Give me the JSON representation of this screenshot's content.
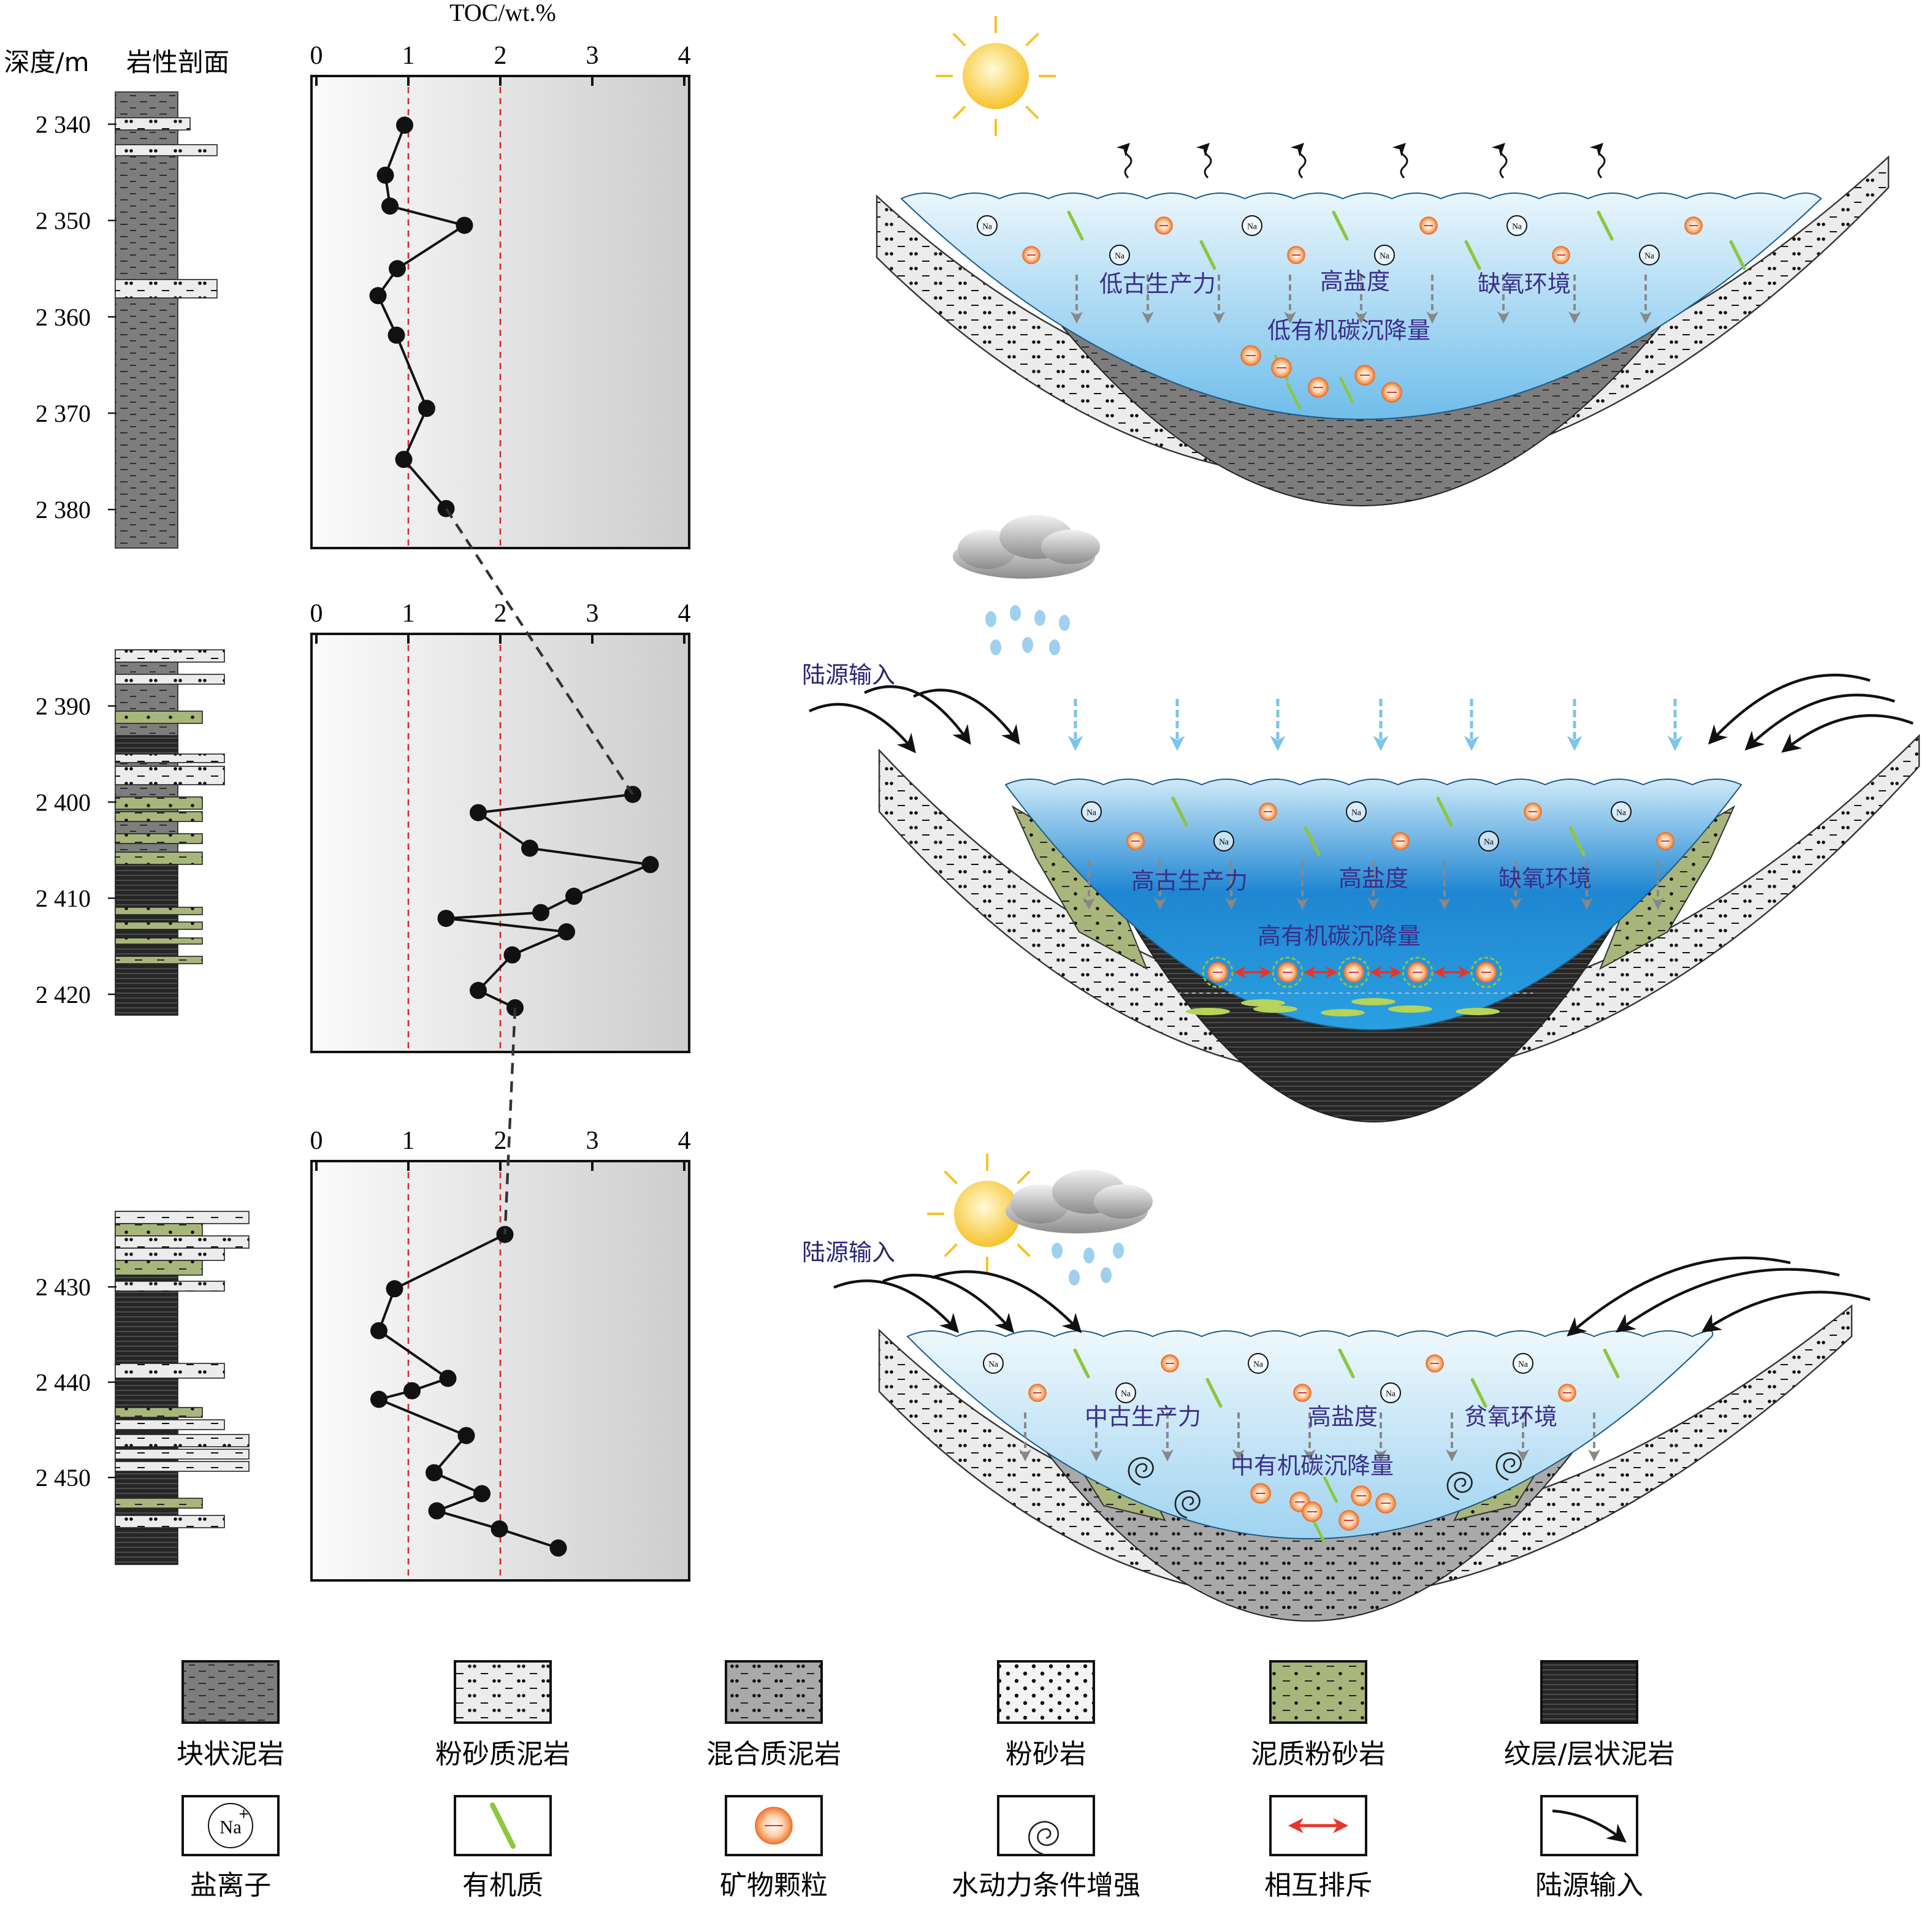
{
  "labels": {
    "depth": "深度/m",
    "lithology": "岩性剖面",
    "ion_symbol": "Na",
    "ion_charge": "+"
  },
  "chart_data": [
    {
      "type": "line",
      "x_label": "TOC/wt.%",
      "xlim": [
        0,
        4
      ],
      "xticks": [
        0,
        1,
        2,
        3,
        4
      ],
      "ref_lines": [
        1,
        2
      ],
      "ylim": [
        2335,
        2384
      ],
      "yticks": [
        {
          "value": 2340,
          "label": "2 340"
        },
        {
          "value": 2350,
          "label": "2 350"
        },
        {
          "value": 2360,
          "label": "2 360"
        },
        {
          "value": 2370,
          "label": "2 370"
        },
        {
          "value": 2380,
          "label": "2 380"
        }
      ],
      "x": [
        0.96,
        0.75,
        0.8,
        1.61,
        0.88,
        0.67,
        0.87,
        1.2,
        0.95,
        1.41
      ],
      "y": [
        2340.1,
        2345.3,
        2348.5,
        2350.5,
        2355.0,
        2357.8,
        2361.9,
        2369.5,
        2374.8,
        2379.9
      ]
    },
    {
      "type": "line",
      "xlim": [
        0,
        4
      ],
      "xticks": [
        0,
        1,
        2,
        3,
        4
      ],
      "ref_lines": [
        1,
        2
      ],
      "ylim": [
        2382.5,
        2426
      ],
      "yticks": [
        {
          "value": 2390,
          "label": "2 390"
        },
        {
          "value": 2400,
          "label": "2 400"
        },
        {
          "value": 2410,
          "label": "2 410"
        },
        {
          "value": 2420,
          "label": "2 420"
        }
      ],
      "x": [
        3.44,
        1.76,
        2.32,
        3.63,
        2.8,
        2.44,
        1.41,
        2.72,
        2.13,
        1.76,
        2.16
      ],
      "y": [
        2399.2,
        2401.1,
        2404.8,
        2406.5,
        2409.8,
        2411.5,
        2412.1,
        2413.5,
        2415.9,
        2419.6,
        2421.4
      ]
    },
    {
      "type": "line",
      "xlim": [
        0,
        4
      ],
      "xticks": [
        0,
        1,
        2,
        3,
        4
      ],
      "ref_lines": [
        1,
        2
      ],
      "ylim": [
        2416.8,
        2460.8
      ],
      "yticks": [
        {
          "value": 2430,
          "label": "2 430"
        },
        {
          "value": 2440,
          "label": "2 440"
        },
        {
          "value": 2450,
          "label": "2 450"
        }
      ],
      "x": [
        2.05,
        0.85,
        0.68,
        1.43,
        1.04,
        0.68,
        1.63,
        1.28,
        1.8,
        1.31,
        1.99,
        2.63
      ],
      "y": [
        2424.5,
        2430.2,
        2434.6,
        2439.6,
        2440.9,
        2441.8,
        2445.6,
        2449.5,
        2451.7,
        2453.5,
        2455.4,
        2457.4
      ]
    }
  ],
  "basins": [
    {
      "productivity": "低古生产力",
      "salinity": "高盐度",
      "redox": "缺氧环境",
      "flux": "低有机碳沉降量"
    },
    {
      "input": "陆源输入",
      "productivity": "高古生产力",
      "salinity": "高盐度",
      "redox": "缺氧环境",
      "flux": "高有机碳沉降量"
    },
    {
      "input": "陆源输入",
      "productivity": "中古生产力",
      "salinity": "高盐度",
      "redox": "贫氧环境",
      "flux": "中有机碳沉降量"
    }
  ],
  "legend": [
    "块状泥岩",
    "粉砂质泥岩",
    "混合质泥岩",
    "粉砂岩",
    "泥质粉砂岩",
    "纹层/层状泥岩",
    "盐离子",
    "有机质",
    "矿物颗粒",
    "水动力条件增强",
    "相互排斥",
    "陆源输入"
  ]
}
